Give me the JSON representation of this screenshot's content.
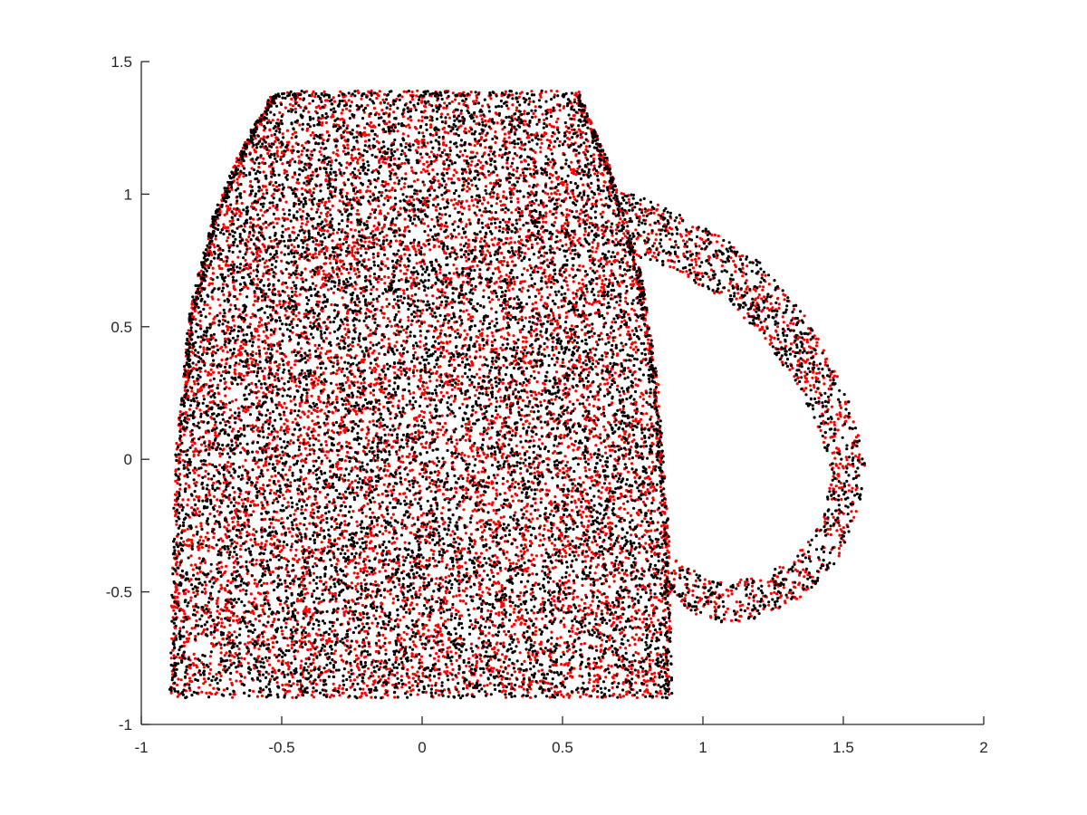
{
  "chart_data": {
    "type": "scatter",
    "title": "",
    "xlabel": "",
    "ylabel": "",
    "xlim": [
      -1,
      2
    ],
    "ylim": [
      -1,
      1.5
    ],
    "xticks": [
      -1,
      -0.5,
      0,
      0.5,
      1,
      1.5,
      2
    ],
    "yticks": [
      -1,
      -0.5,
      0,
      0.5,
      1,
      1.5
    ],
    "xtick_labels": [
      "-1",
      "-0.5",
      "0",
      "0.5",
      "1",
      "1.5",
      "2"
    ],
    "ytick_labels": [
      "-1",
      "-0.5",
      "0",
      "0.5",
      "1",
      "1.5"
    ],
    "grid": false,
    "box": false,
    "legend": "none",
    "shape_description": "dense point cloud of a mug silhouette with a handle on the right",
    "series": [
      {
        "color": "#ff0000",
        "marker": "dot",
        "outline": {
          "body_polygon": [
            [
              -0.89,
              -0.9
            ],
            [
              -0.87,
              0.0
            ],
            [
              -0.82,
              0.55
            ],
            [
              -0.74,
              0.9
            ],
            [
              -0.63,
              1.18
            ],
            [
              -0.52,
              1.38
            ],
            [
              0.55,
              1.38
            ],
            [
              0.66,
              1.1
            ],
            [
              0.77,
              0.7
            ],
            [
              0.83,
              0.3
            ],
            [
              0.87,
              -0.3
            ],
            [
              0.88,
              -0.9
            ]
          ],
          "handle_outer": [
            [
              0.66,
              1.03
            ],
            [
              0.8,
              0.98
            ],
            [
              1.0,
              0.88
            ],
            [
              1.2,
              0.75
            ],
            [
              1.36,
              0.55
            ],
            [
              1.48,
              0.33
            ],
            [
              1.56,
              0.1
            ],
            [
              1.58,
              -0.05
            ],
            [
              1.55,
              -0.22
            ],
            [
              1.47,
              -0.4
            ],
            [
              1.35,
              -0.52
            ],
            [
              1.2,
              -0.6
            ],
            [
              1.08,
              -0.62
            ],
            [
              0.96,
              -0.58
            ],
            [
              0.87,
              -0.5
            ]
          ],
          "handle_inner": [
            [
              0.75,
              0.77
            ],
            [
              0.92,
              0.7
            ],
            [
              1.08,
              0.6
            ],
            [
              1.22,
              0.46
            ],
            [
              1.33,
              0.28
            ],
            [
              1.42,
              0.1
            ],
            [
              1.46,
              -0.07
            ],
            [
              1.42,
              -0.24
            ],
            [
              1.32,
              -0.38
            ],
            [
              1.18,
              -0.45
            ],
            [
              1.05,
              -0.46
            ],
            [
              0.93,
              -0.4
            ],
            [
              0.86,
              -0.32
            ]
          ]
        },
        "approx_points": 9000
      },
      {
        "color": "#000000",
        "marker": "dot",
        "outline": "same",
        "approx_points": 9000
      }
    ]
  }
}
